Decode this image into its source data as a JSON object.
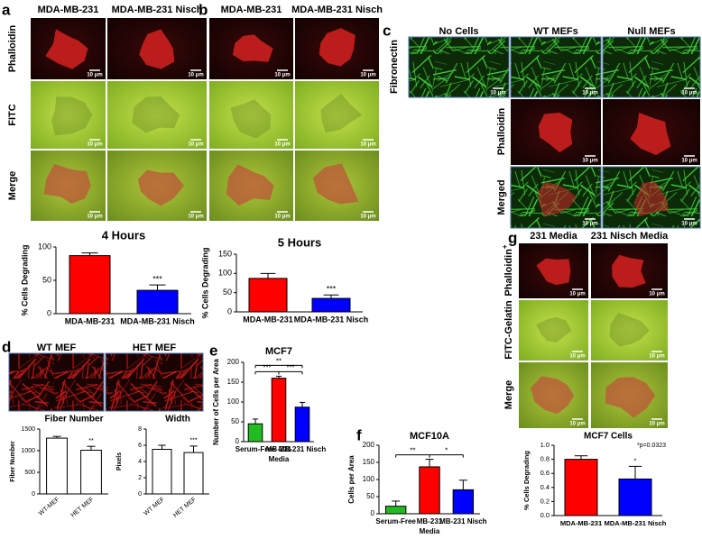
{
  "figure": {
    "scale_bar": "10 μm",
    "panels": {
      "a": {
        "label": "a",
        "columns": [
          "MDA-MB-231",
          "MDA-MB-231 Nisch"
        ],
        "rows": [
          "Phalloidin",
          "FITC",
          "Merge"
        ]
      },
      "b": {
        "label": "b",
        "columns": [
          "MDA-MB-231",
          "MDA-MB-231 Nisch"
        ]
      },
      "c": {
        "label": "c",
        "columns": [
          "No Cells",
          "WT MEFs",
          "Null MEFs"
        ],
        "rows": [
          "Fibronectin",
          "Phalloidin",
          "Merged"
        ]
      },
      "d": {
        "label": "d",
        "columns": [
          "WT MEF",
          "HET MEF"
        ]
      },
      "e": {
        "label": "e"
      },
      "f": {
        "label": "f"
      },
      "g": {
        "label": "g",
        "columns": [
          "231 Media",
          "231 Nisch Media"
        ],
        "rows": [
          "Phalloidin",
          "FITC-Gelatin",
          "Merge"
        ],
        "row_superscript": "+"
      }
    }
  },
  "chart_data": [
    {
      "type": "bar",
      "title": "4 Hours",
      "ylabel": "% Cells Degrading",
      "categories": [
        "MDA-MB-231",
        "MDA-MB-231 Nisch"
      ],
      "values": [
        87,
        35
      ],
      "errors": [
        4,
        8
      ],
      "colors": [
        "#ff0000",
        "#0000ff"
      ],
      "bar_labels": [
        null,
        "***"
      ],
      "ylim": [
        0,
        100
      ],
      "yticks": [
        0,
        50,
        100
      ]
    },
    {
      "type": "bar",
      "title": "5 Hours",
      "ylabel": "% Cells Degrading",
      "categories": [
        "MDA-MB-231",
        "MDA-MB-231 Nisch"
      ],
      "values": [
        87,
        35
      ],
      "errors": [
        13,
        9
      ],
      "colors": [
        "#ff0000",
        "#0000ff"
      ],
      "bar_labels": [
        null,
        "***"
      ],
      "ylim": [
        0,
        150
      ],
      "yticks": [
        0,
        50,
        100,
        150
      ]
    },
    {
      "type": "bar",
      "title": "Fiber Number",
      "ylabel": "Fiber Number",
      "categories": [
        "WT-MEF",
        "HET MEF"
      ],
      "values": [
        1290,
        1010
      ],
      "errors": [
        40,
        90
      ],
      "colors": [
        "#ffffff",
        "#ffffff"
      ],
      "bar_labels": [
        null,
        "**"
      ],
      "ylim": [
        0,
        1500
      ],
      "yticks": [
        0,
        500,
        1000,
        1500
      ]
    },
    {
      "type": "bar",
      "title": "Width",
      "ylabel": "Pixels",
      "categories": [
        "WT MEF",
        "HET MEF"
      ],
      "values": [
        5.5,
        5.1
      ],
      "errors": [
        0.5,
        0.8
      ],
      "colors": [
        "#ffffff",
        "#ffffff"
      ],
      "bar_labels": [
        null,
        "***"
      ],
      "ylim": [
        0,
        8
      ],
      "yticks": [
        0,
        2,
        4,
        6,
        8
      ]
    },
    {
      "type": "bar",
      "title": "MCF7",
      "ylabel": "Number of Cells per Area",
      "xlabel": "Media",
      "categories": [
        "Serum-Free",
        "MB-231",
        "MB-231 Nisch"
      ],
      "values": [
        45,
        160,
        87
      ],
      "errors": [
        12,
        5,
        12
      ],
      "colors": [
        "#22bb22",
        "#ff0000",
        "#0000ff"
      ],
      "brackets": [
        {
          "label": "**",
          "span": [
            0,
            2
          ]
        },
        {
          "label": "***",
          "span": [
            0,
            1
          ]
        },
        {
          "label": "***",
          "span": [
            1,
            2
          ]
        }
      ],
      "ylim": [
        0,
        200
      ],
      "yticks": [
        0,
        50,
        100,
        150,
        200
      ]
    },
    {
      "type": "bar",
      "title": "MCF10A",
      "ylabel": "Cells per Area",
      "xlabel": "Media",
      "categories": [
        "Serum-Free",
        "MB-231",
        "MB-231 Nisch"
      ],
      "values": [
        22,
        137,
        70
      ],
      "errors": [
        15,
        22,
        28
      ],
      "colors": [
        "#22bb22",
        "#ff0000",
        "#0000ff"
      ],
      "brackets": [
        {
          "label": "**",
          "span": [
            0,
            1
          ]
        },
        {
          "label": "*",
          "span": [
            1,
            2
          ]
        }
      ],
      "ylim": [
        0,
        200
      ],
      "yticks": [
        0,
        50,
        100,
        150,
        200
      ]
    },
    {
      "type": "bar",
      "title": "MCF7 Cells",
      "annotation": "*p=0.0323",
      "ylabel": "% Cells Degrading",
      "categories": [
        "MDA-MB-231",
        "MDA-MB-231 Nisch"
      ],
      "values": [
        0.8,
        0.52
      ],
      "errors": [
        0.05,
        0.18
      ],
      "colors": [
        "#ff0000",
        "#0000ff"
      ],
      "bar_labels": [
        null,
        "*"
      ],
      "ylim": [
        0,
        1
      ],
      "yticks": [
        {
          "value": 0,
          "label": "0.0"
        },
        0.2,
        0.4,
        0.6,
        0.8,
        {
          "value": 1,
          "label": "1.0"
        }
      ]
    }
  ]
}
